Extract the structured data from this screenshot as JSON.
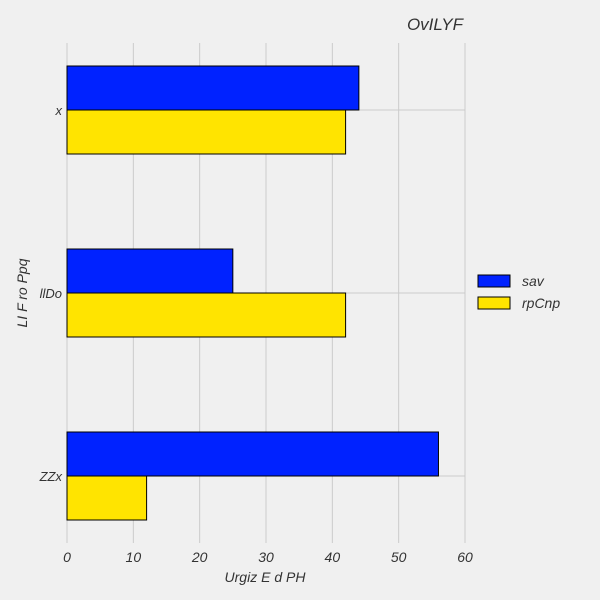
{
  "chart_data": {
    "type": "bar",
    "orientation": "horizontal",
    "title": "OvILYF",
    "xlabel": "Urgiz E d PH",
    "ylabel": "LI F ro Ppq",
    "categories": [
      "x",
      "llDo",
      "ZZx"
    ],
    "series": [
      {
        "name": "sav",
        "values": [
          44,
          25,
          56
        ],
        "color": "#0022ff"
      },
      {
        "name": "rpCnp",
        "values": [
          42,
          42,
          12
        ],
        "color": "#ffe400"
      }
    ],
    "xlim": [
      0,
      60
    ],
    "xticks": [
      0,
      10,
      20,
      30,
      40,
      50,
      60
    ],
    "grid": true,
    "legend_position": "right"
  }
}
